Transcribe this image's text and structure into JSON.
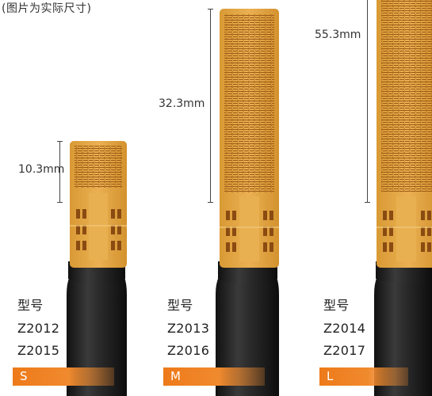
{
  "note": "(图片为实际尺寸)",
  "sensors": [
    {
      "dimension": "10.3mm",
      "model_title": "型号",
      "models": [
        "Z2012",
        "Z2015"
      ],
      "size": "S"
    },
    {
      "dimension": "32.3mm",
      "model_title": "型号",
      "models": [
        "Z2013",
        "Z2016"
      ],
      "size": "M"
    },
    {
      "dimension": "55.3mm",
      "model_title": "型号",
      "models": [
        "Z2014",
        "Z2017"
      ],
      "size": "L"
    }
  ],
  "colors": {
    "sensor_film": "#e0a640",
    "sensor_trace": "#a85e14",
    "cable": "#1b1b1b",
    "size_bar": "#ee7a1a"
  }
}
